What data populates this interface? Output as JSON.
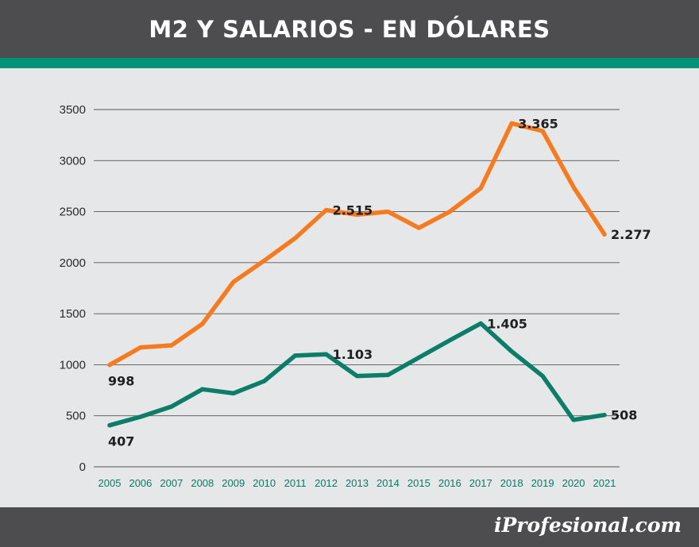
{
  "header": {
    "title": "M2 Y SALARIOS - EN DÓLARES"
  },
  "footer": {
    "brand": "iProfesional.com"
  },
  "colors": {
    "m2": "#f47b20",
    "salarios": "#0b7d69",
    "header_bg": "#4d4d4f",
    "accent": "#00937a"
  },
  "chart_data": {
    "type": "line",
    "title": "M2 Y SALARIOS - EN DÓLARES",
    "x": [
      "2005",
      "2006",
      "2007",
      "2008",
      "2009",
      "2010",
      "2011",
      "2012",
      "2013",
      "2014",
      "2015",
      "2016",
      "2017",
      "2018",
      "2019",
      "2020",
      "2021"
    ],
    "ylim": [
      0,
      3500
    ],
    "yticks": [
      0,
      500,
      1000,
      1500,
      2000,
      2500,
      3000,
      3500
    ],
    "grid": true,
    "series": [
      {
        "key": "m2",
        "values": [
          998,
          1170,
          1190,
          1400,
          1810,
          2020,
          2240,
          2515,
          2470,
          2500,
          2340,
          2500,
          2730,
          3365,
          3290,
          2740,
          2277
        ]
      },
      {
        "key": "salarios",
        "values": [
          407,
          490,
          590,
          760,
          720,
          840,
          1090,
          1103,
          890,
          900,
          1070,
          1240,
          1405,
          1130,
          890,
          460,
          508
        ]
      }
    ],
    "annotations": [
      {
        "series": "m2",
        "index": 0,
        "text": "998",
        "pos": "below"
      },
      {
        "series": "m2",
        "index": 7,
        "text": "2.515",
        "pos": "right"
      },
      {
        "series": "m2",
        "index": 13,
        "text": "3.365",
        "pos": "right"
      },
      {
        "series": "m2",
        "index": 16,
        "text": "2.277",
        "pos": "right"
      },
      {
        "series": "salarios",
        "index": 0,
        "text": "407",
        "pos": "below"
      },
      {
        "series": "salarios",
        "index": 7,
        "text": "1.103",
        "pos": "right"
      },
      {
        "series": "salarios",
        "index": 12,
        "text": "1.405",
        "pos": "right"
      },
      {
        "series": "salarios",
        "index": 16,
        "text": "508",
        "pos": "right"
      }
    ]
  }
}
